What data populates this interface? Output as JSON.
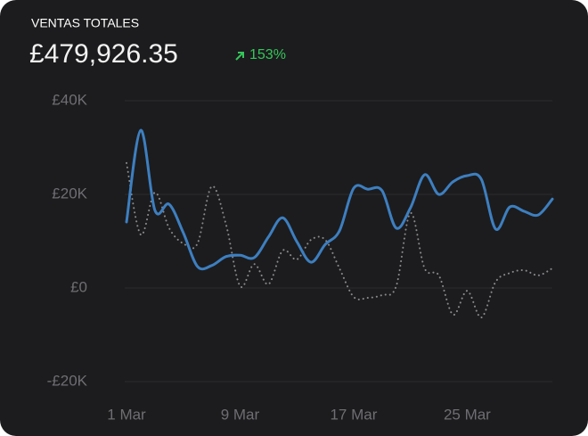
{
  "header": {
    "title": "VENTAS TOTALES",
    "total": "£479,926.35",
    "change": "153%"
  },
  "chart_data": {
    "type": "line",
    "categories": [
      "1 Mar",
      null,
      null,
      null,
      null,
      null,
      null,
      null,
      "9 Mar",
      null,
      null,
      null,
      null,
      null,
      null,
      null,
      "17 Mar",
      null,
      null,
      null,
      null,
      null,
      null,
      null,
      "25 Mar",
      null,
      null,
      null,
      null,
      null,
      null
    ],
    "series": [
      {
        "color": "#3d7fc0",
        "style": "solid",
        "values": [
          14100,
          33700,
          16600,
          17900,
          11800,
          4600,
          4800,
          6700,
          7000,
          6500,
          10900,
          15000,
          9900,
          5500,
          9300,
          12200,
          21300,
          21100,
          20800,
          12800,
          17100,
          24200,
          20000,
          22700,
          24000,
          23200,
          12600,
          17300,
          16400,
          15600,
          19000
        ]
      },
      {
        "color": "#8a8a8e",
        "style": "dotted",
        "values": [
          26700,
          11400,
          20400,
          12800,
          9500,
          9500,
          21700,
          13700,
          400,
          5100,
          800,
          8000,
          6100,
          10300,
          10300,
          4200,
          -1900,
          -2100,
          -1500,
          400,
          16000,
          4200,
          2700,
          -5700,
          -600,
          -6300,
          1300,
          3200,
          3800,
          2700,
          4200
        ]
      }
    ],
    "ylim": [
      -20000,
      40000
    ],
    "yticks": [
      {
        "value": -20000,
        "label": "-£20K"
      },
      {
        "value": 0,
        "label": "£0"
      },
      {
        "value": 20000,
        "label": "£20K"
      },
      {
        "value": 40000,
        "label": "£40K"
      }
    ],
    "grid": true
  }
}
